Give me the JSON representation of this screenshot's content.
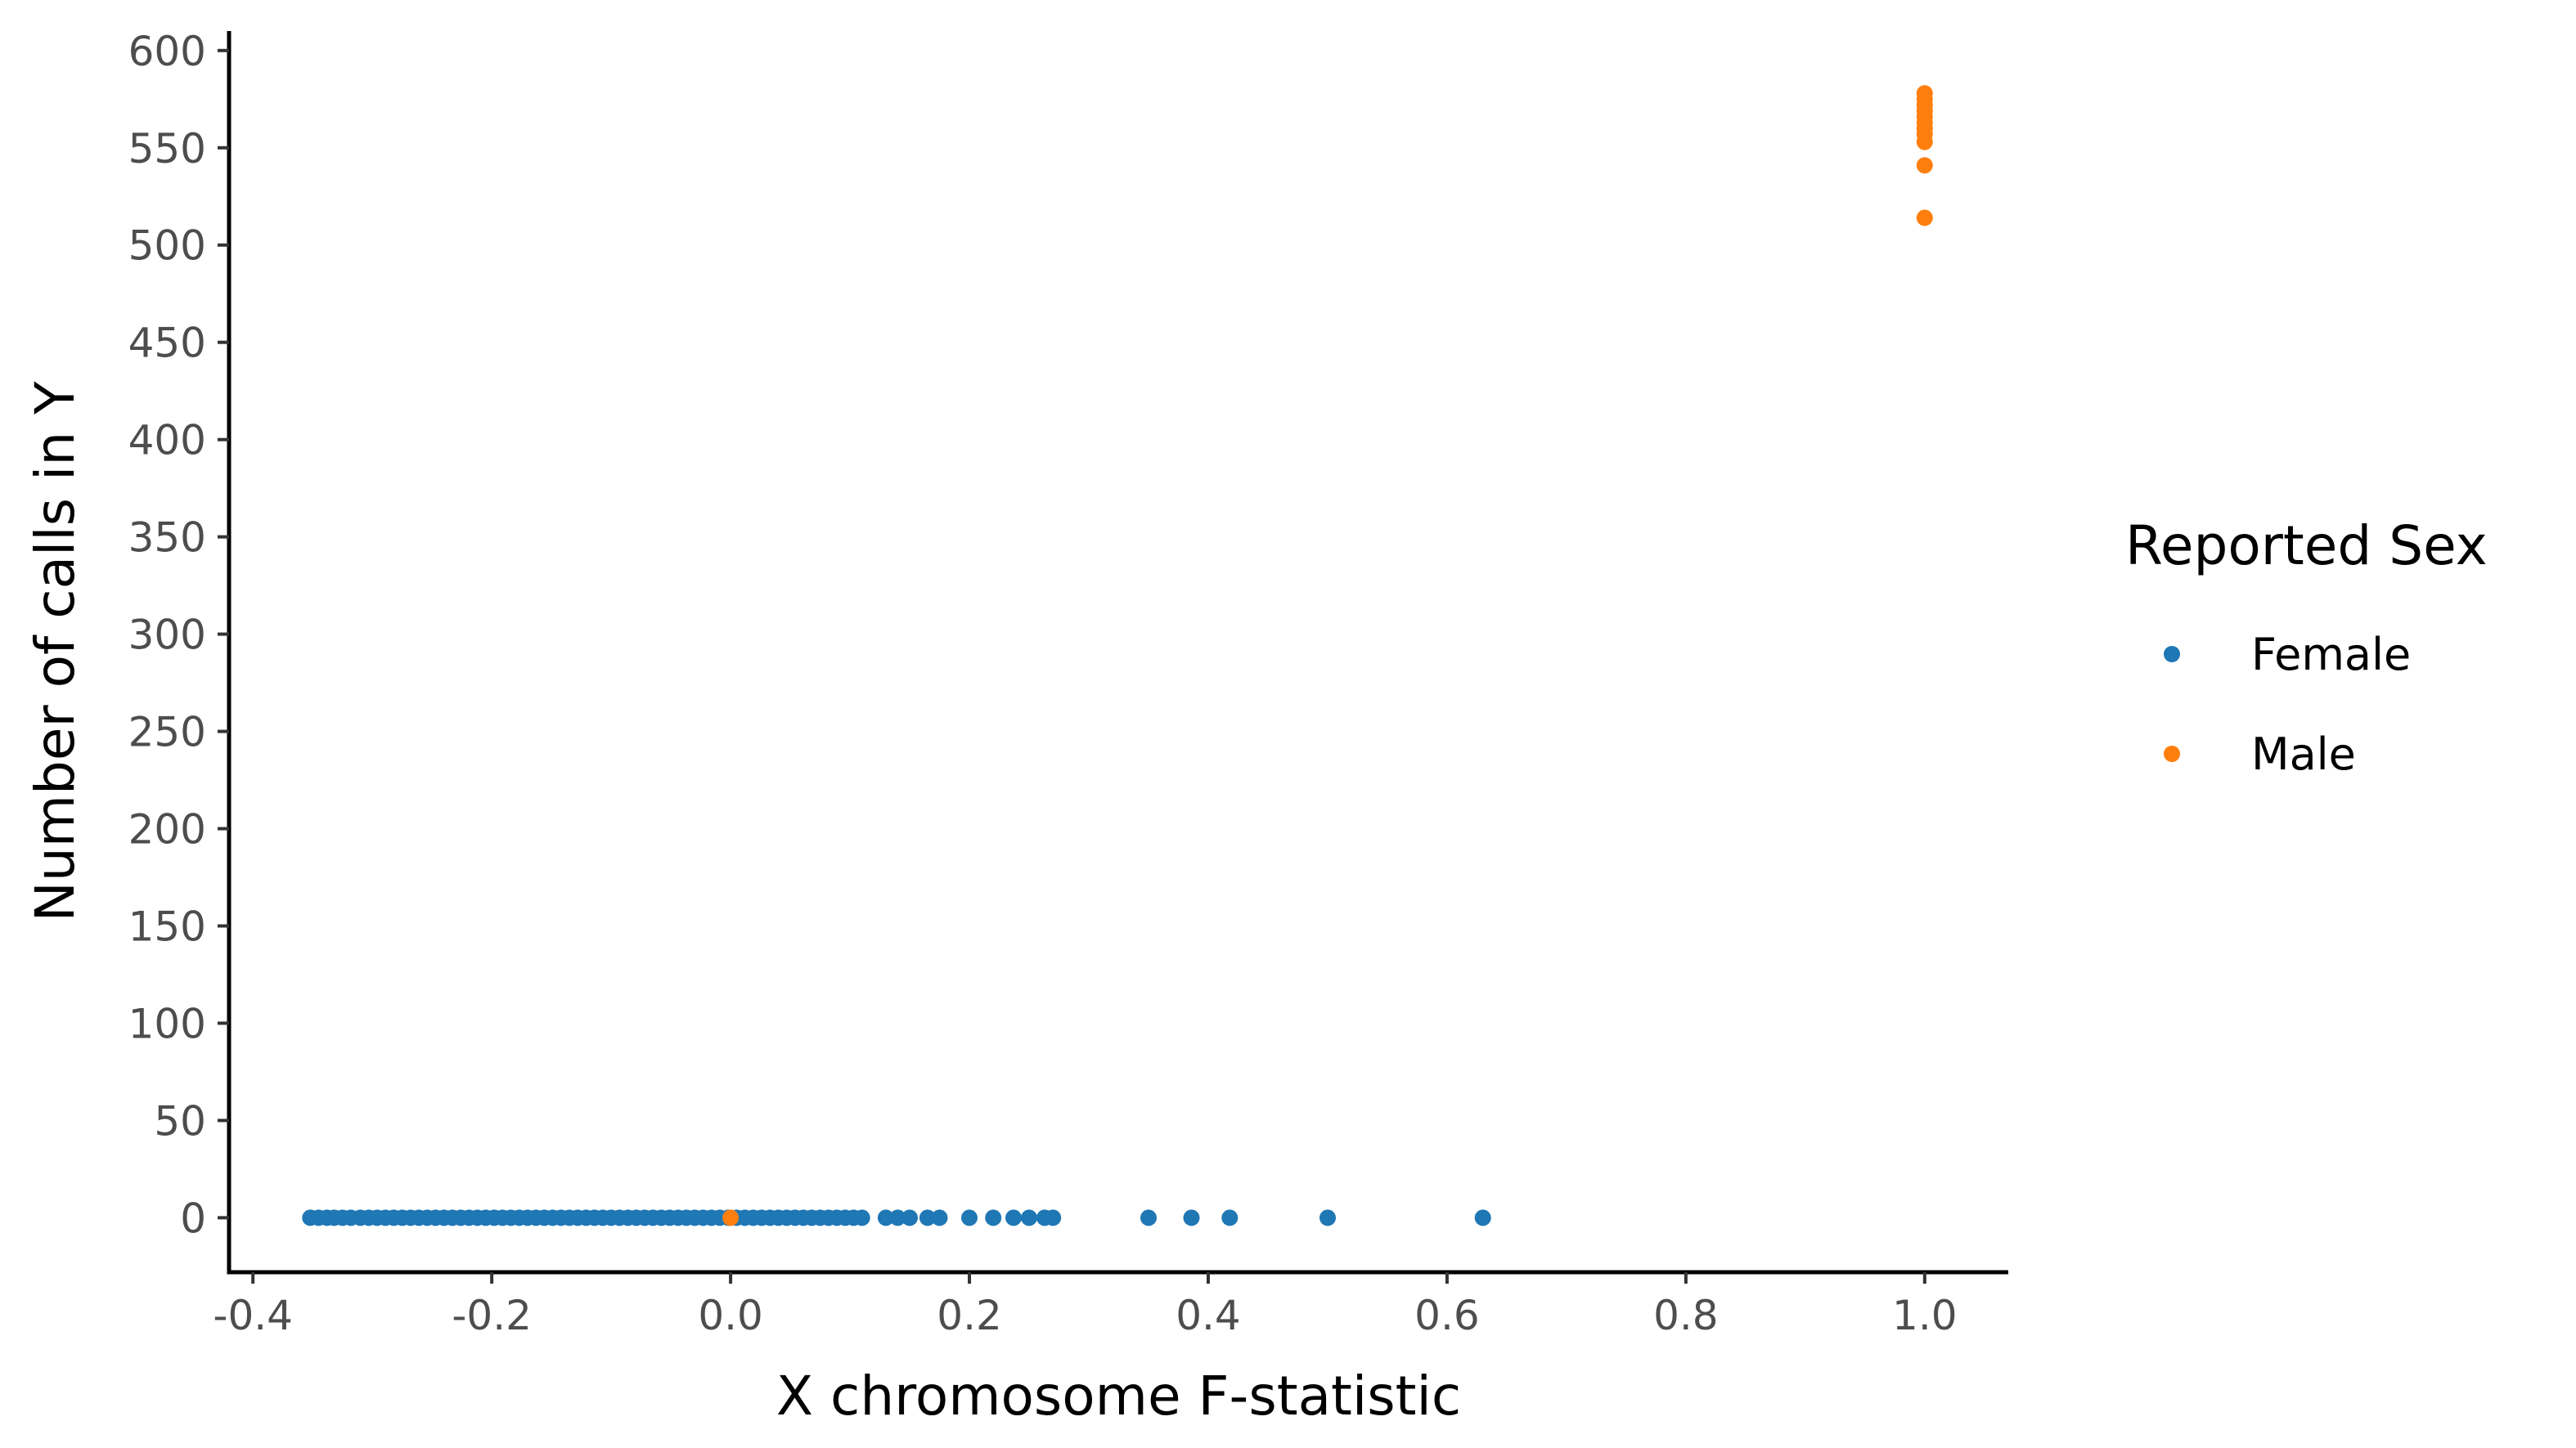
{
  "chart_data": {
    "type": "scatter",
    "title": "",
    "xlabel": "X chromosome F-statistic",
    "ylabel": "Number of calls in Y",
    "xlim": [
      -0.42,
      1.07
    ],
    "ylim": [
      -28,
      610
    ],
    "x_ticks": [
      -0.4,
      -0.2,
      0.0,
      0.2,
      0.4,
      0.6,
      0.8,
      1.0
    ],
    "x_tick_labels": [
      "-0.4",
      "-0.2",
      "0.0",
      "0.2",
      "0.4",
      "0.6",
      "0.8",
      "1.0"
    ],
    "y_ticks": [
      0,
      50,
      100,
      150,
      200,
      250,
      300,
      350,
      400,
      450,
      500,
      550,
      600
    ],
    "y_tick_labels": [
      "0",
      "50",
      "100",
      "150",
      "200",
      "250",
      "300",
      "350",
      "400",
      "450",
      "500",
      "550",
      "600"
    ],
    "grid": false,
    "legend": {
      "title": "Reported Sex",
      "placement": "right"
    },
    "series": [
      {
        "name": "Female",
        "color": "#1f77b4",
        "points": [
          [
            -0.352,
            0
          ],
          [
            -0.345,
            0
          ],
          [
            -0.338,
            0
          ],
          [
            -0.332,
            0
          ],
          [
            -0.325,
            0
          ],
          [
            -0.318,
            0
          ],
          [
            -0.31,
            0
          ],
          [
            -0.303,
            0
          ],
          [
            -0.296,
            0
          ],
          [
            -0.289,
            0
          ],
          [
            -0.282,
            0
          ],
          [
            -0.275,
            0
          ],
          [
            -0.268,
            0
          ],
          [
            -0.261,
            0
          ],
          [
            -0.254,
            0
          ],
          [
            -0.247,
            0
          ],
          [
            -0.24,
            0
          ],
          [
            -0.233,
            0
          ],
          [
            -0.226,
            0
          ],
          [
            -0.219,
            0
          ],
          [
            -0.212,
            0
          ],
          [
            -0.205,
            0
          ],
          [
            -0.198,
            0
          ],
          [
            -0.191,
            0
          ],
          [
            -0.184,
            0
          ],
          [
            -0.177,
            0
          ],
          [
            -0.17,
            0
          ],
          [
            -0.163,
            0
          ],
          [
            -0.156,
            0
          ],
          [
            -0.149,
            0
          ],
          [
            -0.142,
            0
          ],
          [
            -0.135,
            0
          ],
          [
            -0.128,
            0
          ],
          [
            -0.121,
            0
          ],
          [
            -0.114,
            0
          ],
          [
            -0.107,
            0
          ],
          [
            -0.1,
            0
          ],
          [
            -0.093,
            0
          ],
          [
            -0.086,
            0
          ],
          [
            -0.079,
            0
          ],
          [
            -0.072,
            0
          ],
          [
            -0.065,
            0
          ],
          [
            -0.058,
            0
          ],
          [
            -0.051,
            0
          ],
          [
            -0.044,
            0
          ],
          [
            -0.037,
            0
          ],
          [
            -0.03,
            0
          ],
          [
            -0.023,
            0
          ],
          [
            -0.016,
            0
          ],
          [
            -0.009,
            0
          ],
          [
            -0.002,
            0
          ],
          [
            0.005,
            0
          ],
          [
            0.012,
            0
          ],
          [
            0.019,
            0
          ],
          [
            0.026,
            0
          ],
          [
            0.033,
            0
          ],
          [
            0.04,
            0
          ],
          [
            0.047,
            0
          ],
          [
            0.054,
            0
          ],
          [
            0.061,
            0
          ],
          [
            0.068,
            0
          ],
          [
            0.075,
            0
          ],
          [
            0.082,
            0
          ],
          [
            0.089,
            0
          ],
          [
            0.096,
            0
          ],
          [
            0.103,
            0
          ],
          [
            0.11,
            0
          ],
          [
            0.13,
            0
          ],
          [
            0.14,
            0
          ],
          [
            0.15,
            0
          ],
          [
            0.165,
            0
          ],
          [
            0.175,
            0
          ],
          [
            0.2,
            0
          ],
          [
            0.22,
            0
          ],
          [
            0.237,
            0
          ],
          [
            0.25,
            0
          ],
          [
            0.263,
            0
          ],
          [
            0.27,
            0
          ],
          [
            0.35,
            0
          ],
          [
            0.386,
            0
          ],
          [
            0.418,
            0
          ],
          [
            0.5,
            0
          ],
          [
            0.63,
            0
          ]
        ]
      },
      {
        "name": "Male",
        "color": "#ff7f0e",
        "points": [
          [
            0.0,
            0
          ],
          [
            1.0,
            514
          ],
          [
            1.0,
            541
          ],
          [
            1.0,
            553
          ],
          [
            1.0,
            557
          ],
          [
            1.0,
            560
          ],
          [
            1.0,
            563
          ],
          [
            1.0,
            566
          ],
          [
            1.0,
            569
          ],
          [
            1.0,
            572
          ],
          [
            1.0,
            575
          ],
          [
            1.0,
            578
          ]
        ]
      }
    ]
  }
}
